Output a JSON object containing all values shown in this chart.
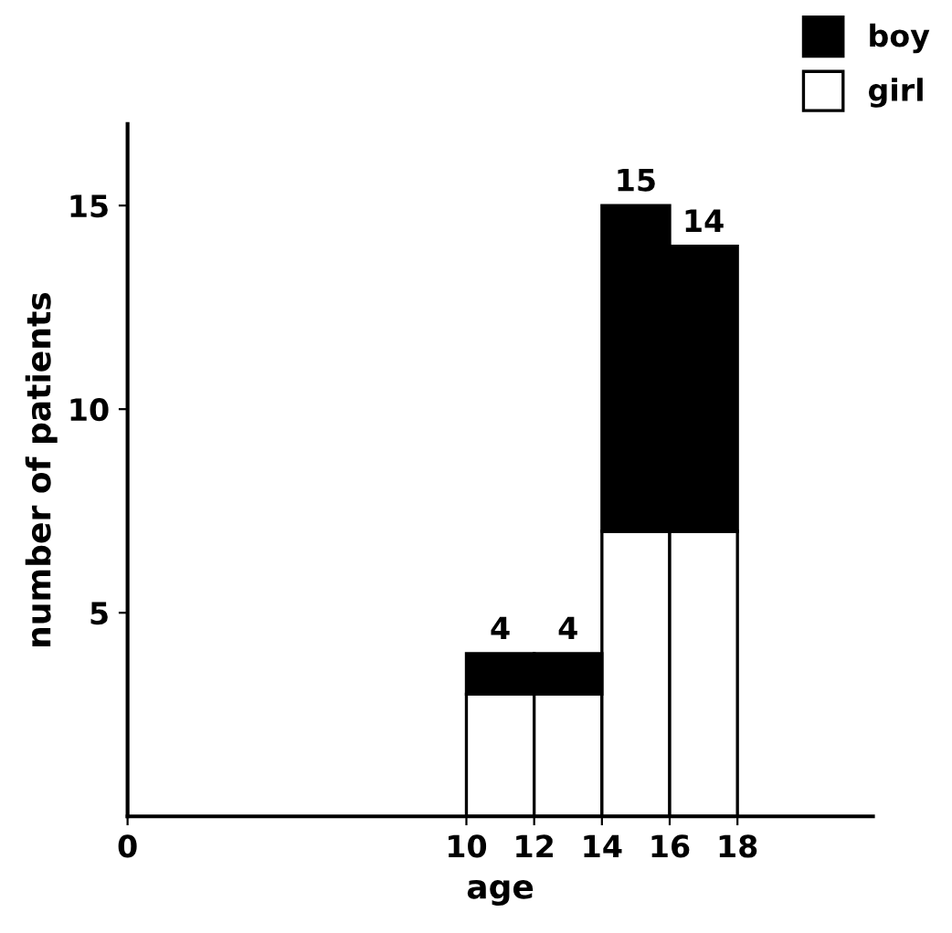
{
  "chart_data": {
    "type": "bar",
    "xlabel": "age",
    "ylabel": "number of patients",
    "x": [
      11,
      13,
      15,
      17
    ],
    "series": [
      {
        "name": "girl",
        "color": "#ffffff",
        "values": [
          3,
          3,
          7,
          7
        ]
      },
      {
        "name": "boy",
        "color": "#000000",
        "values": [
          1,
          1,
          8,
          7
        ]
      }
    ],
    "stacked": true,
    "totals": [
      "4",
      "4",
      "15",
      "14"
    ],
    "xlim": [
      0,
      22
    ],
    "xticks": [
      0,
      10,
      12,
      14,
      16,
      18
    ],
    "ylim": [
      0,
      17
    ],
    "yticks": [
      5,
      10,
      15
    ],
    "grid": false,
    "legend": "top right"
  }
}
